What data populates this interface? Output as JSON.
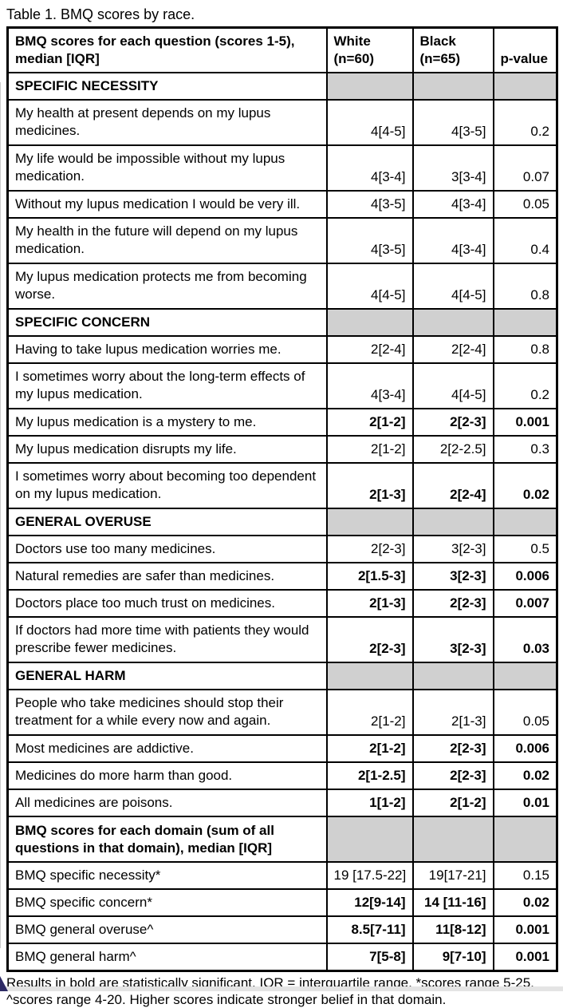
{
  "title": "Table 1. BMQ scores by race.",
  "table": {
    "header": {
      "question_line1": "BMQ scores for each question (scores 1-5),",
      "question_line2": "median [IQR]",
      "white_line1": "White",
      "white_line2": "(n=60)",
      "black_line1": "Black",
      "black_line2": "(n=65)",
      "p_label": "p-value"
    },
    "rows": [
      {
        "type": "section",
        "label": "SPECIFIC NECESSITY",
        "lines": 1
      },
      {
        "type": "data",
        "question": "My health at present depends on my lupus medicines.",
        "white": "4[4-5]",
        "black": "4[3-5]",
        "p": "0.2",
        "bold": false,
        "lines": 2
      },
      {
        "type": "data",
        "question": "My life would be impossible without my lupus medication.",
        "white": "4[3-4]",
        "black": "3[3-4]",
        "p": "0.07",
        "bold": false,
        "lines": 2
      },
      {
        "type": "data",
        "question": "Without my lupus medication I would be very ill.",
        "white": "4[3-5]",
        "black": "4[3-4]",
        "p": "0.05",
        "bold": false,
        "lines": 1
      },
      {
        "type": "data",
        "question": "My health in the future will depend on my lupus medication.",
        "white": "4[3-5]",
        "black": "4[3-4]",
        "p": "0.4",
        "bold": false,
        "lines": 2
      },
      {
        "type": "data",
        "question": "My lupus medication protects me from becoming worse.",
        "white": "4[4-5]",
        "black": "4[4-5]",
        "p": "0.8",
        "bold": false,
        "lines": 2
      },
      {
        "type": "section",
        "label": "SPECIFIC CONCERN",
        "lines": 1
      },
      {
        "type": "data",
        "question": "Having to take lupus medication worries me.",
        "white": "2[2-4]",
        "black": "2[2-4]",
        "p": "0.8",
        "bold": false,
        "lines": 1
      },
      {
        "type": "data",
        "question": "I sometimes worry about the long-term effects of my lupus medication.",
        "white": "4[3-4]",
        "black": "4[4-5]",
        "p": "0.2",
        "bold": false,
        "lines": 2
      },
      {
        "type": "data",
        "question": "My lupus medication is a mystery to me.",
        "white": "2[1-2]",
        "black": "2[2-3]",
        "p": "0.001",
        "bold": true,
        "lines": 1
      },
      {
        "type": "data",
        "question": "My lupus medication disrupts my life.",
        "white": "2[1-2]",
        "black": "2[2-2.5]",
        "p": "0.3",
        "bold": false,
        "lines": 1
      },
      {
        "type": "data",
        "question": "I sometimes worry about becoming too dependent on my lupus medication.",
        "white": "2[1-3]",
        "black": "2[2-4]",
        "p": "0.02",
        "bold": true,
        "lines": 2
      },
      {
        "type": "section",
        "label": "GENERAL OVERUSE",
        "lines": 1
      },
      {
        "type": "data",
        "question": "Doctors use too many medicines.",
        "white": "2[2-3]",
        "black": "3[2-3]",
        "p": "0.5",
        "bold": false,
        "lines": 1
      },
      {
        "type": "data",
        "question": "Natural remedies are safer than medicines.",
        "white": "2[1.5-3]",
        "black": "3[2-3]",
        "p": "0.006",
        "bold": true,
        "lines": 1
      },
      {
        "type": "data",
        "question": "Doctors place too much trust on medicines.",
        "white": "2[1-3]",
        "black": "2[2-3]",
        "p": "0.007",
        "bold": true,
        "lines": 1
      },
      {
        "type": "data",
        "question": "If doctors had more time with patients they would prescribe fewer medicines.",
        "white": "2[2-3]",
        "black": "3[2-3]",
        "p": "0.03",
        "bold": true,
        "lines": 2
      },
      {
        "type": "section",
        "label": "GENERAL HARM",
        "lines": 1
      },
      {
        "type": "data",
        "question": "People who take medicines should stop their treatment for a while every now and again.",
        "white": "2[1-2]",
        "black": "2[1-3]",
        "p": "0.05",
        "bold": false,
        "lines": 2
      },
      {
        "type": "data",
        "question": "Most medicines are addictive.",
        "white": "2[1-2]",
        "black": "2[2-3]",
        "p": "0.006",
        "bold": true,
        "lines": 1
      },
      {
        "type": "data",
        "question": "Medicines do more harm than good.",
        "white": "2[1-2.5]",
        "black": "2[2-3]",
        "p": "0.02",
        "bold": true,
        "lines": 1
      },
      {
        "type": "data",
        "question": "All medicines are poisons.",
        "white": "1[1-2]",
        "black": "2[1-2]",
        "p": "0.01",
        "bold": true,
        "lines": 1
      },
      {
        "type": "section",
        "label": "BMQ scores for each domain (sum of all questions in that domain), median [IQR]",
        "lines": 2
      },
      {
        "type": "data",
        "question": "BMQ specific necessity*",
        "white": "19 [17.5-22]",
        "black": "19[17-21]",
        "p": "0.15",
        "bold": false,
        "lines": 1
      },
      {
        "type": "data",
        "question": "BMQ specific concern*",
        "white": "12[9-14]",
        "black": "14 [11-16]",
        "p": "0.02",
        "bold": true,
        "lines": 1
      },
      {
        "type": "data",
        "question": "BMQ general overuse^",
        "white": "8.5[7-11]",
        "black": "11[8-12]",
        "p": "0.001",
        "bold": true,
        "lines": 1
      },
      {
        "type": "data",
        "question": "BMQ general harm^",
        "white": "7[5-8]",
        "black": "9[7-10]",
        "p": "0.001",
        "bold": true,
        "lines": 1
      }
    ]
  },
  "footnote": "Results in bold are statistically significant. IQR = interquartile range. *scores range 5-25, ^scores range 4-20. Higher scores indicate stronger belief in that domain.",
  "colors": {
    "section_fill": "#d0d0d0",
    "border": "#000000",
    "corner_navy": "#2d2a64",
    "bottom_strip": "#e4e4e4"
  }
}
